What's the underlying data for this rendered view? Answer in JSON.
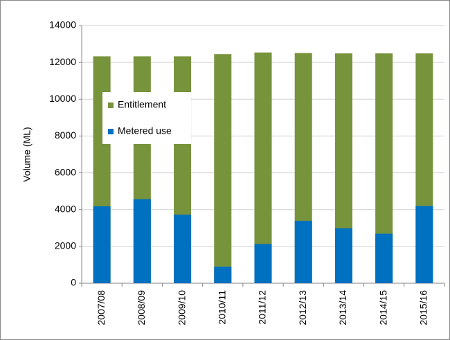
{
  "chart_data": {
    "type": "bar",
    "mode": "overlap",
    "y_label": "Volume (ML)",
    "categories": [
      "2007/08",
      "2008/09",
      "2009/10",
      "2010/11",
      "2011/12",
      "2012/13",
      "2013/14",
      "2014/15",
      "2015/16"
    ],
    "series": [
      {
        "name": "Entitlement",
        "color": "#77933c",
        "values": [
          12330,
          12330,
          12330,
          12450,
          12540,
          12510,
          12490,
          12490,
          12490
        ]
      },
      {
        "name": "Metered use",
        "color": "#0070c0",
        "values": [
          4180,
          4570,
          3730,
          900,
          2130,
          3390,
          2990,
          2690,
          4200
        ]
      }
    ],
    "ylim": [
      0,
      14000
    ],
    "yticks": [
      0,
      2000,
      4000,
      6000,
      8000,
      10000,
      12000,
      14000
    ],
    "grid": true
  }
}
